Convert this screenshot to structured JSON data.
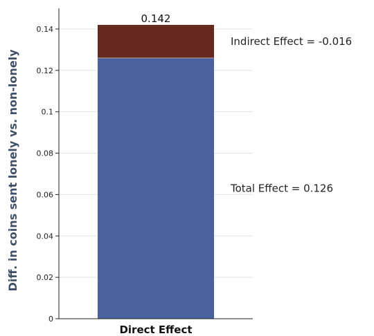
{
  "chart_data": {
    "type": "bar",
    "stacked": true,
    "categories": [
      "Direct Effect"
    ],
    "series": [
      {
        "values": [
          0.126
        ],
        "color": "#4a63a0"
      },
      {
        "values": [
          0.016
        ],
        "color": "#66291f"
      }
    ],
    "total_label": "0.142",
    "ylabel": "Diff. in coins sent lonely vs. non-lonely",
    "ylim": [
      0,
      0.15
    ],
    "yticks": [
      0,
      0.02,
      0.04,
      0.06,
      0.08,
      0.1,
      0.12,
      0.14
    ],
    "ytick_labels": [
      "0",
      "0.02",
      "0.04",
      "0.06",
      "0.08",
      "0.1",
      "0.12",
      "0.14"
    ],
    "grid": true,
    "annotations": [
      {
        "text": "Indirect Effect = -0.016",
        "y": 0.134
      },
      {
        "text": "Total Effect = 0.126",
        "y": 0.063
      }
    ]
  }
}
